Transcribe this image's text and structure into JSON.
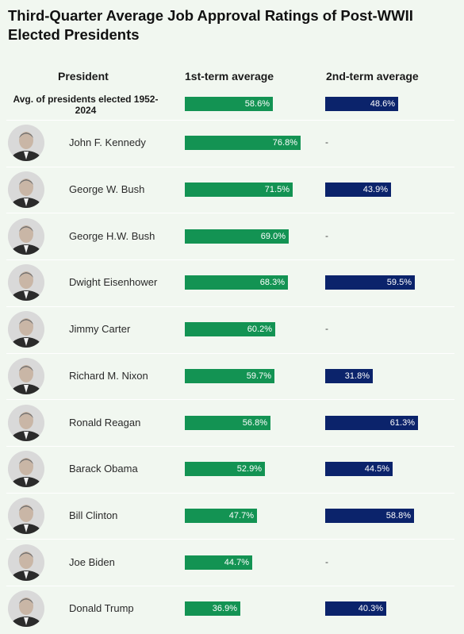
{
  "chart_data": {
    "type": "bar",
    "title": "Third-Quarter Average Job Approval Ratings of Post-WWII Elected Presidents",
    "columns": {
      "president": "President",
      "first": "1st-term average",
      "second": "2nd-term average"
    },
    "average": {
      "label": "Avg. of presidents elected 1952-2024",
      "first": 58.6,
      "first_label": "58.6%",
      "second": 48.6,
      "second_label": "48.6%"
    },
    "presidents": [
      {
        "name": "John F. Kennedy",
        "first": 76.8,
        "first_label": "76.8%",
        "second": null,
        "second_label": "-"
      },
      {
        "name": "George W. Bush",
        "first": 71.5,
        "first_label": "71.5%",
        "second": 43.9,
        "second_label": "43.9%"
      },
      {
        "name": "George H.W. Bush",
        "first": 69.0,
        "first_label": "69.0%",
        "second": null,
        "second_label": "-"
      },
      {
        "name": "Dwight Eisenhower",
        "first": 68.3,
        "first_label": "68.3%",
        "second": 59.5,
        "second_label": "59.5%"
      },
      {
        "name": "Jimmy Carter",
        "first": 60.2,
        "first_label": "60.2%",
        "second": null,
        "second_label": "-"
      },
      {
        "name": "Richard M. Nixon",
        "first": 59.7,
        "first_label": "59.7%",
        "second": 31.8,
        "second_label": "31.8%"
      },
      {
        "name": "Ronald Reagan",
        "first": 56.8,
        "first_label": "56.8%",
        "second": 61.3,
        "second_label": "61.3%"
      },
      {
        "name": "Barack Obama",
        "first": 52.9,
        "first_label": "52.9%",
        "second": 44.5,
        "second_label": "44.5%"
      },
      {
        "name": "Bill Clinton",
        "first": 47.7,
        "first_label": "47.7%",
        "second": 58.8,
        "second_label": "58.8%"
      },
      {
        "name": "Joe Biden",
        "first": 44.7,
        "first_label": "44.7%",
        "second": null,
        "second_label": "-"
      },
      {
        "name": "Donald Trump",
        "first": 36.9,
        "first_label": "36.9%",
        "second": 40.3,
        "second_label": "40.3%"
      }
    ],
    "colors": {
      "first": "#139353",
      "second": "#0b236b"
    }
  }
}
